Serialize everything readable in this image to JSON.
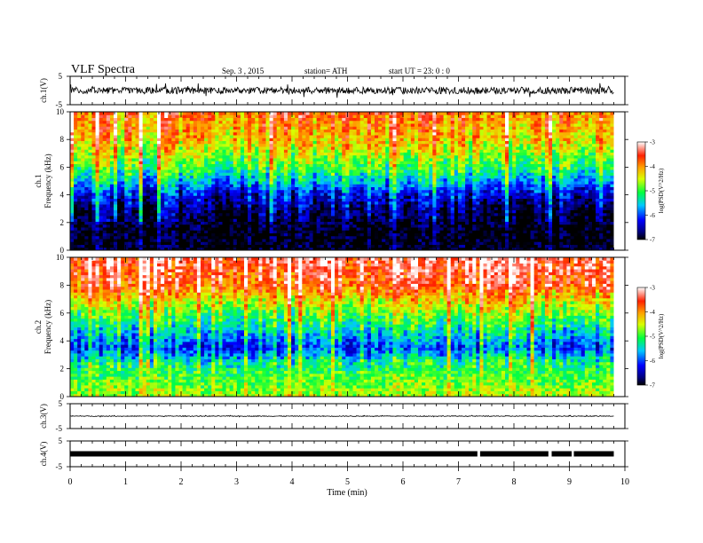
{
  "header": {
    "title": "VLF  Spectra",
    "date": "Sep. 3  , 2015",
    "station": "station= ATH",
    "start": "start  UT  =   23: 0  : 0"
  },
  "chart_data": [
    {
      "type": "line",
      "panel": "ch1-waveform",
      "ylabel": "ch.1(V)",
      "yticks": [
        "5",
        "-5"
      ],
      "ylim": [
        -5,
        5
      ],
      "xlim": [
        0,
        10
      ],
      "baseline": 0,
      "noise_amplitude": 1.2
    },
    {
      "type": "heatmap",
      "panel": "ch1-spectrogram",
      "ylabel_line1": "ch.1",
      "ylabel_line2": "Frequency  (kHz)",
      "yticks": [
        "0",
        "2",
        "4",
        "6",
        "8",
        "10"
      ],
      "ylim": [
        0,
        10
      ],
      "xlim": [
        0,
        9.8
      ],
      "colorbar": {
        "label": "log(PSD(V^2/Hz)",
        "ticks": [
          "-3",
          "-4",
          "-5",
          "-6",
          "-7"
        ],
        "range": [
          -7,
          -3
        ]
      },
      "profile": [
        {
          "f_khz": 0.0,
          "log_psd": -7.0
        },
        {
          "f_khz": 1.5,
          "log_psd": -7.0
        },
        {
          "f_khz": 3.0,
          "log_psd": -6.7
        },
        {
          "f_khz": 4.0,
          "log_psd": -6.3
        },
        {
          "f_khz": 5.0,
          "log_psd": -5.6
        },
        {
          "f_khz": 6.0,
          "log_psd": -5.0
        },
        {
          "f_khz": 7.0,
          "log_psd": -4.6
        },
        {
          "f_khz": 8.0,
          "log_psd": -4.2
        },
        {
          "f_khz": 10.0,
          "log_psd": -3.8
        }
      ]
    },
    {
      "type": "heatmap",
      "panel": "ch2-spectrogram",
      "ylabel_line1": "ch.2",
      "ylabel_line2": "Frequency  (kHz)",
      "yticks": [
        "0",
        "2",
        "4",
        "6",
        "8",
        "10"
      ],
      "ylim": [
        0,
        10
      ],
      "xlim": [
        0,
        9.8
      ],
      "colorbar": {
        "label": "log(PSD(V^2/Hz)",
        "ticks": [
          "-3",
          "-4",
          "-5",
          "-6",
          "-7"
        ],
        "range": [
          -7,
          -3
        ]
      },
      "profile": [
        {
          "f_khz": 0.0,
          "log_psd": -4.6
        },
        {
          "f_khz": 1.0,
          "log_psd": -4.8
        },
        {
          "f_khz": 2.5,
          "log_psd": -5.2
        },
        {
          "f_khz": 3.5,
          "log_psd": -6.0
        },
        {
          "f_khz": 4.5,
          "log_psd": -5.5
        },
        {
          "f_khz": 6.0,
          "log_psd": -4.8
        },
        {
          "f_khz": 7.0,
          "log_psd": -4.3
        },
        {
          "f_khz": 8.0,
          "log_psd": -3.6
        },
        {
          "f_khz": 10.0,
          "log_psd": -3.3
        }
      ]
    },
    {
      "type": "line",
      "panel": "ch3-waveform",
      "ylabel": "ch.3(V)",
      "yticks": [
        "5",
        "-5"
      ],
      "ylim": [
        -5,
        5
      ],
      "xlim": [
        0,
        10
      ],
      "baseline": 0,
      "noise_amplitude": 0.15
    },
    {
      "type": "line",
      "panel": "ch4-waveform",
      "ylabel": "ch.4(V)",
      "yticks": [
        "5",
        "-5"
      ],
      "ylim": [
        -5,
        5
      ],
      "xlim": [
        0,
        10
      ],
      "baseline": 0,
      "gaps_min": [
        [
          7.34,
          7.39
        ],
        [
          8.62,
          8.68
        ],
        [
          9.04,
          9.08
        ]
      ]
    }
  ],
  "xaxis": {
    "label": "Time  (min)",
    "ticks": [
      "0",
      "1",
      "2",
      "3",
      "4",
      "5",
      "6",
      "7",
      "8",
      "9",
      "10"
    ],
    "range": [
      0,
      10
    ],
    "data_end": 9.8
  }
}
